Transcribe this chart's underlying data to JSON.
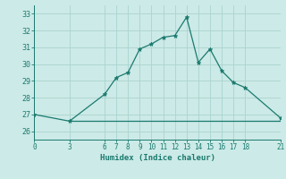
{
  "x_humidex": [
    0,
    3,
    6,
    7,
    8,
    9,
    10,
    11,
    12,
    13,
    14,
    15,
    16,
    17,
    18,
    21
  ],
  "y_humidex": [
    27.0,
    26.6,
    28.2,
    29.2,
    29.5,
    30.9,
    31.2,
    31.6,
    31.7,
    32.8,
    30.1,
    30.9,
    29.6,
    28.9,
    28.6,
    26.8
  ],
  "x_flat": [
    3,
    6,
    7,
    8,
    9,
    10,
    11,
    12,
    13,
    14,
    15,
    16,
    17,
    18,
    21
  ],
  "y_flat": [
    26.6,
    26.6,
    26.6,
    26.6,
    26.6,
    26.6,
    26.6,
    26.6,
    26.6,
    26.6,
    26.6,
    26.6,
    26.6,
    26.6,
    26.6
  ],
  "line_color": "#1a7a6e",
  "background_color": "#cceae7",
  "grid_color": "#aad4d0",
  "xlabel": "Humidex (Indice chaleur)",
  "ylim": [
    25.5,
    33.5
  ],
  "xlim": [
    0,
    21
  ],
  "yticks": [
    26,
    27,
    28,
    29,
    30,
    31,
    32,
    33
  ],
  "xticks": [
    0,
    3,
    6,
    7,
    8,
    9,
    10,
    11,
    12,
    13,
    14,
    15,
    16,
    17,
    18,
    21
  ],
  "marker_style": "*",
  "marker_size": 3.5,
  "line_width": 0.9
}
